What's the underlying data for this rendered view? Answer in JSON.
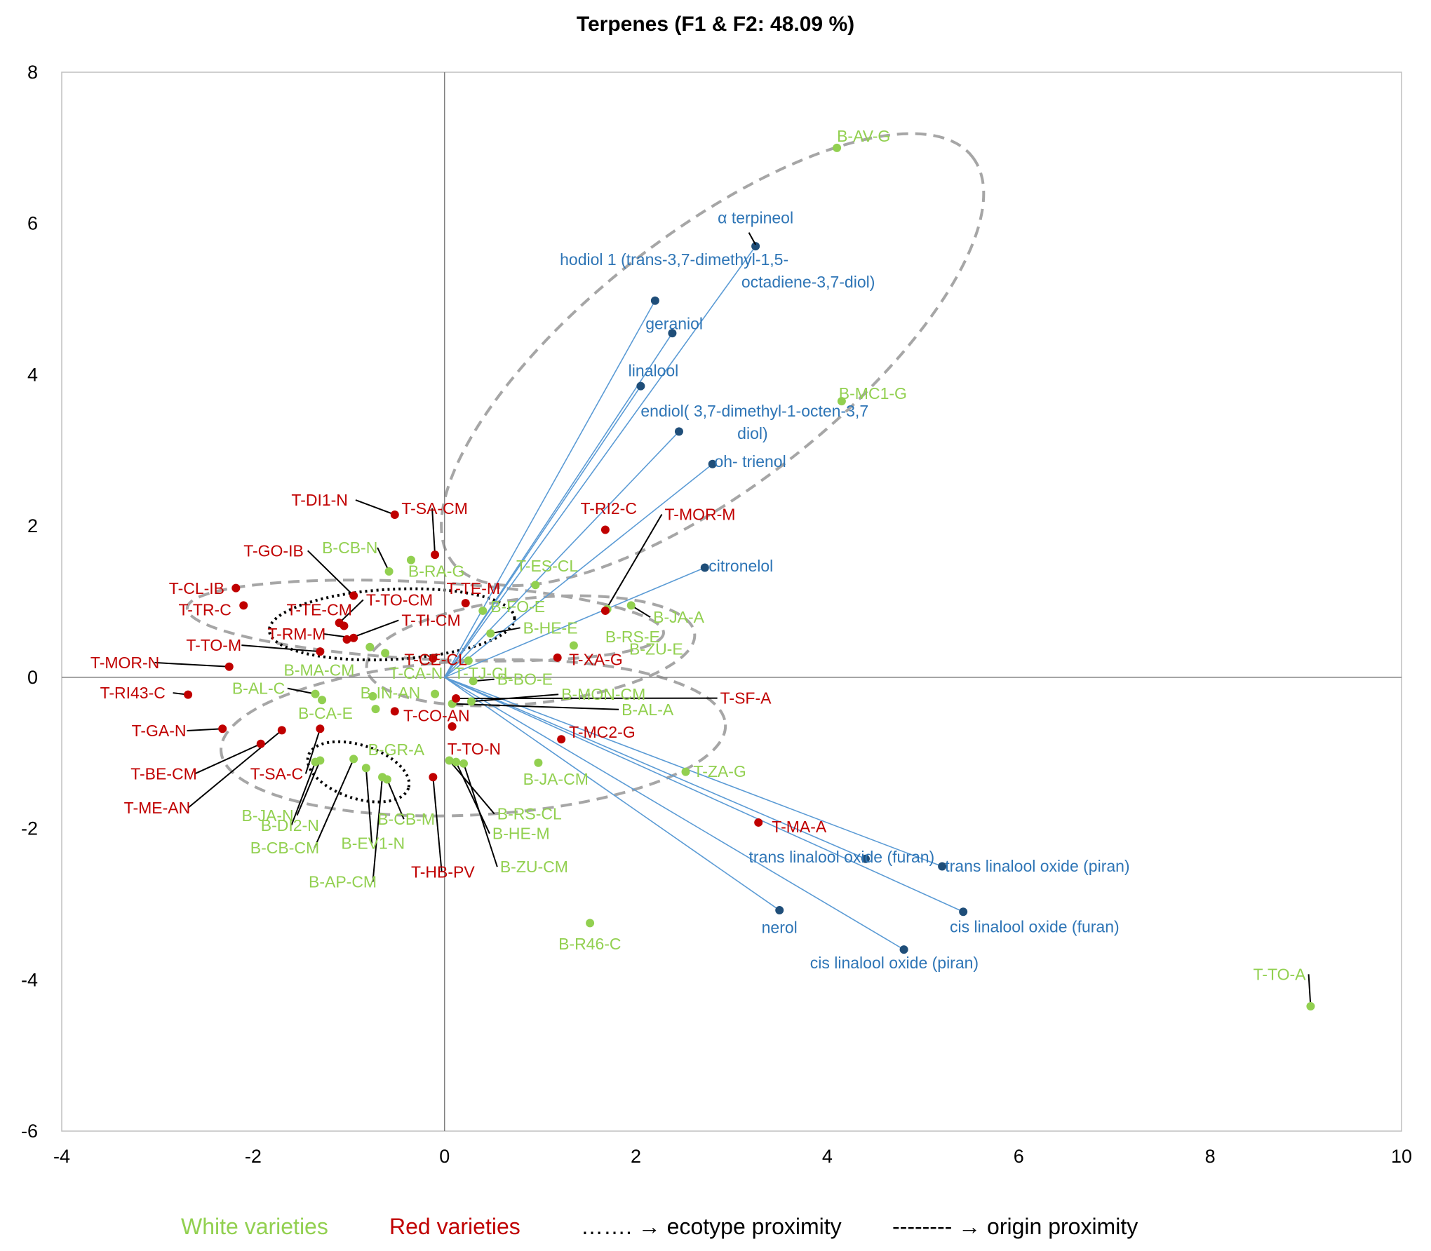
{
  "chart_data": {
    "type": "scatter",
    "title": "Terpenes (F1 & F2: 48.09 %)",
    "xlabel": "",
    "ylabel": "",
    "xlim": [
      -4,
      10
    ],
    "ylim": [
      -6,
      8
    ],
    "x_ticks": [
      "-4",
      "-2",
      "0",
      "2",
      "4",
      "6",
      "8",
      "10"
    ],
    "y_ticks": [
      "8",
      "6",
      "4",
      "2",
      "0",
      "-2",
      "-4",
      "-6"
    ],
    "grid": false,
    "colors": {
      "white": "#92d050",
      "red": "#c00000",
      "variable": "#1f4e79",
      "variable_text": "#2e75b6",
      "vector": "#5b9bd5",
      "leader": "#000000",
      "ellipse": "#a6a6a6"
    },
    "variables": [
      {
        "name": "α terpineol",
        "x": 3.25,
        "y": 5.7
      },
      {
        "name": "hodiol 1 (trans-3,7-dimethyl-1,5-",
        "name2": "octadiene-3,7-diol)",
        "x": 2.2,
        "y": 4.98
      },
      {
        "name": "geraniol",
        "x": 2.38,
        "y": 4.55
      },
      {
        "name": "linalool",
        "x": 2.05,
        "y": 3.85
      },
      {
        "name": "endiol( 3,7-dimethyl-1-octen-3,7",
        "name2": "diol)",
        "x": 2.45,
        "y": 3.25
      },
      {
        "name": "oh- trienol",
        "x": 2.8,
        "y": 2.82
      },
      {
        "name": "citronelol",
        "x": 2.72,
        "y": 1.45
      },
      {
        "name": "trans linalool oxide (furan)",
        "x": 4.4,
        "y": -2.4
      },
      {
        "name": "trans linalool oxide (piran)",
        "x": 5.2,
        "y": -2.5
      },
      {
        "name": "cis linalool oxide (furan)",
        "x": 5.42,
        "y": -3.1
      },
      {
        "name": "nerol",
        "x": 3.5,
        "y": -3.08
      },
      {
        "name": "cis linalool oxide (piran)",
        "x": 4.8,
        "y": -3.6
      }
    ],
    "series": [
      {
        "name": "White varieties",
        "points": [
          {
            "label": "B-AV-G",
            "x": 4.1,
            "y": 7.0
          },
          {
            "label": "B-MC1-G",
            "x": 4.15,
            "y": 3.65
          },
          {
            "label": "B-T-TO-A",
            "display": "T-TO-A",
            "x": 9.05,
            "y": -4.35
          },
          {
            "label": "B-R46-C",
            "x": 1.52,
            "y": -3.25
          },
          {
            "label": "B-JA-CM",
            "x": 0.98,
            "y": -1.13
          },
          {
            "label": "T-ZA-G",
            "x": 2.52,
            "y": -1.25
          },
          {
            "label": "T-ES-CL",
            "x": 0.95,
            "y": 1.22
          },
          {
            "label": "B-RS-E",
            "x": 1.7,
            "y": 0.9
          },
          {
            "label": "B-JA-A",
            "x": 1.95,
            "y": 0.95
          },
          {
            "label": "B-ZU-E",
            "x": 1.35,
            "y": 0.42
          },
          {
            "label": "B-FO-E",
            "x": 0.4,
            "y": 0.88
          },
          {
            "label": "B-HE-E",
            "x": 0.48,
            "y": 0.58
          },
          {
            "label": "B-BO-E",
            "x": 0.3,
            "y": -0.05
          },
          {
            "label": "B-MON-CM",
            "x": 0.28,
            "y": -0.32
          },
          {
            "label": "B-AL-A",
            "x": 0.08,
            "y": -0.35
          },
          {
            "label": "B-RA-G",
            "x": -0.35,
            "y": 1.55
          },
          {
            "label": "B-CB-N",
            "x": -0.58,
            "y": 1.4
          },
          {
            "label": "B-MA-CM",
            "x": -0.78,
            "y": 0.4
          },
          {
            "label": "T-CE-CL",
            "x": -0.62,
            "y": 0.32
          },
          {
            "label": "B-IN-AN",
            "x": -0.75,
            "y": -0.25
          },
          {
            "label": "B-AL-C",
            "x": -1.35,
            "y": -0.22
          },
          {
            "label": "B-CA-E",
            "x": -1.28,
            "y": -0.3
          },
          {
            "label": "B-GR-A",
            "x": -0.72,
            "y": -0.42
          },
          {
            "label": "B-JA-N",
            "x": -1.3,
            "y": -1.1
          },
          {
            "label": "B-DI2-N",
            "x": -1.35,
            "y": -1.12
          },
          {
            "label": "B-CB-CM",
            "x": -0.95,
            "y": -1.08
          },
          {
            "label": "B-EV1-N",
            "x": -0.82,
            "y": -1.2
          },
          {
            "label": "B-AP-CM",
            "x": -0.65,
            "y": -1.32
          },
          {
            "label": "B-CB-M",
            "x": -0.6,
            "y": -1.35
          },
          {
            "label": "B-RS-CL",
            "x": 0.05,
            "y": -1.1
          },
          {
            "label": "B-HE-M",
            "x": 0.12,
            "y": -1.12
          },
          {
            "label": "B-ZU-CM",
            "x": 0.2,
            "y": -1.14
          },
          {
            "label": "T-TJ-CL",
            "x": 0.25,
            "y": 0.22
          },
          {
            "label": "T-CA-N",
            "x": -0.1,
            "y": -0.22
          }
        ]
      },
      {
        "name": "Red varieties",
        "points": [
          {
            "label": "T-DI1-N",
            "x": -0.52,
            "y": 2.15
          },
          {
            "label": "T-SA-CM",
            "x": -0.1,
            "y": 1.62
          },
          {
            "label": "T-RI2-C",
            "x": 1.68,
            "y": 1.95
          },
          {
            "label": "T-MOR-M",
            "x": 1.68,
            "y": 0.88
          },
          {
            "label": "T-GO-IB",
            "x": -0.95,
            "y": 1.08
          },
          {
            "label": "T-TE-M",
            "x": 0.22,
            "y": 0.98
          },
          {
            "label": "T-CL-IB",
            "x": -2.18,
            "y": 1.18
          },
          {
            "label": "T-TR-C",
            "x": -2.1,
            "y": 0.95
          },
          {
            "label": "T-TE-CM",
            "x": -1.05,
            "y": 0.68
          },
          {
            "label": "T-TO-CM",
            "x": -1.1,
            "y": 0.72
          },
          {
            "label": "T-TI-CM",
            "x": -1.02,
            "y": 0.5
          },
          {
            "label": "T-RM-M",
            "x": -0.95,
            "y": 0.52
          },
          {
            "label": "T-TO-M",
            "x": -1.3,
            "y": 0.34
          },
          {
            "label": "T-MOR-N",
            "x": -2.25,
            "y": 0.14
          },
          {
            "label": "T-CE-CL",
            "x": -0.12,
            "y": 0.25
          },
          {
            "label": "T-XA-G",
            "x": 1.18,
            "y": 0.26
          },
          {
            "label": "T-RI43-C",
            "x": -2.68,
            "y": -0.23
          },
          {
            "label": "T-CO-AN",
            "x": -0.52,
            "y": -0.45
          },
          {
            "label": "T-GA-N",
            "x": -2.32,
            "y": -0.68
          },
          {
            "label": "T-BE-CM",
            "x": -1.92,
            "y": -0.88
          },
          {
            "label": "T-ME-AN",
            "x": -1.7,
            "y": -0.7
          },
          {
            "label": "T-SA-C",
            "x": -1.3,
            "y": -0.68
          },
          {
            "label": "T-MC2-G",
            "x": 1.22,
            "y": -0.82
          },
          {
            "label": "T-TO-N",
            "x": 0.08,
            "y": -0.65
          },
          {
            "label": "T-HB-PV",
            "x": -0.12,
            "y": -1.32
          },
          {
            "label": "T-SF-A",
            "x": 0.12,
            "y": -0.28
          },
          {
            "label": "T-MA-A",
            "x": 3.28,
            "y": -1.92
          }
        ]
      }
    ],
    "legend": [
      {
        "text": "White varieties",
        "color": "#92d050"
      },
      {
        "text": "Red varieties",
        "color": "#c00000"
      },
      {
        "text": "……. → ecotype proximity",
        "color": "#000000"
      },
      {
        "text": "‐‐‐‐‐‐‐‐ → origin proximity",
        "color": "#000000"
      }
    ],
    "legend_position": "bottom"
  }
}
